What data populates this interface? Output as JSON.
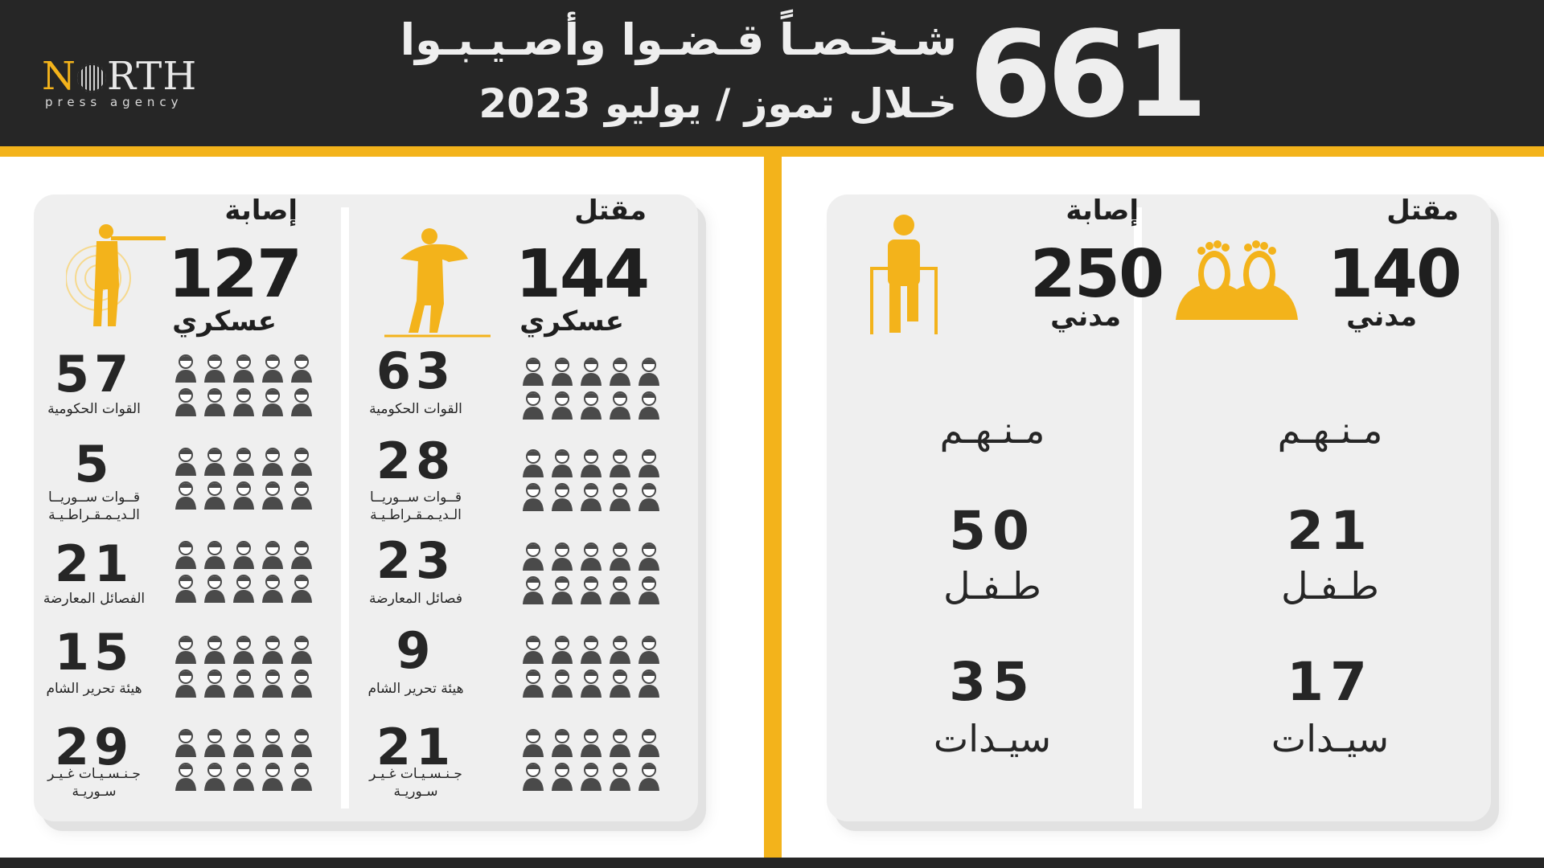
{
  "header": {
    "total": "661",
    "title_line1": "شـخـصـاً قـضـوا وأصـيـبـوا",
    "title_line2": "خـلال  تموز / يوليو 2023",
    "logo_main_n": "N",
    "logo_main_rest": "RTH",
    "logo_sub": "press agency"
  },
  "colors": {
    "accent": "#f3b31b",
    "dark": "#262626",
    "card": "#efefef"
  },
  "civilian": {
    "killed": {
      "label": "مقتل",
      "value": "140",
      "sub": "مدني",
      "icon": "feet-icon"
    },
    "injured": {
      "label": "إصابة",
      "value": "250",
      "sub": "مدني",
      "icon": "walker-person-icon"
    },
    "of_them": "مـنـهـم",
    "killed_breakdown": [
      {
        "value": "21",
        "label": "طـفـل"
      },
      {
        "value": "17",
        "label": "سيـدات"
      }
    ],
    "injured_breakdown": [
      {
        "value": "50",
        "label": "طـفـل"
      },
      {
        "value": "35",
        "label": "سيـدات"
      }
    ]
  },
  "military": {
    "killed": {
      "label": "مقتل",
      "value": "144",
      "sub": "عسكري",
      "icon": "carrying-soldier-icon",
      "groups": [
        {
          "value": "63",
          "label": "القوات الحكومية"
        },
        {
          "value": "28",
          "label": "قــوات ســوريــا الـديـمـقـراطـيـة"
        },
        {
          "value": "23",
          "label": "فصائل المعارضة"
        },
        {
          "value": "9",
          "label": "هيئة تحرير الشام"
        },
        {
          "value": "21",
          "label": "جـنـسـيـات غـيـر سـوريـة"
        }
      ]
    },
    "injured": {
      "label": "إصابة",
      "value": "127",
      "sub": "عسكري",
      "icon": "aiming-soldier-icon",
      "groups": [
        {
          "value": "57",
          "label": "القوات الحكومية"
        },
        {
          "value": "5",
          "label": "قــوات ســوريــا الـديـمـقـراطـيـة"
        },
        {
          "value": "21",
          "label": "الفصائل المعارضة"
        },
        {
          "value": "15",
          "label": "هيئة تحرير الشام"
        },
        {
          "value": "29",
          "label": "جـنـسـيـات غـيـر سـوريـة"
        }
      ]
    }
  }
}
